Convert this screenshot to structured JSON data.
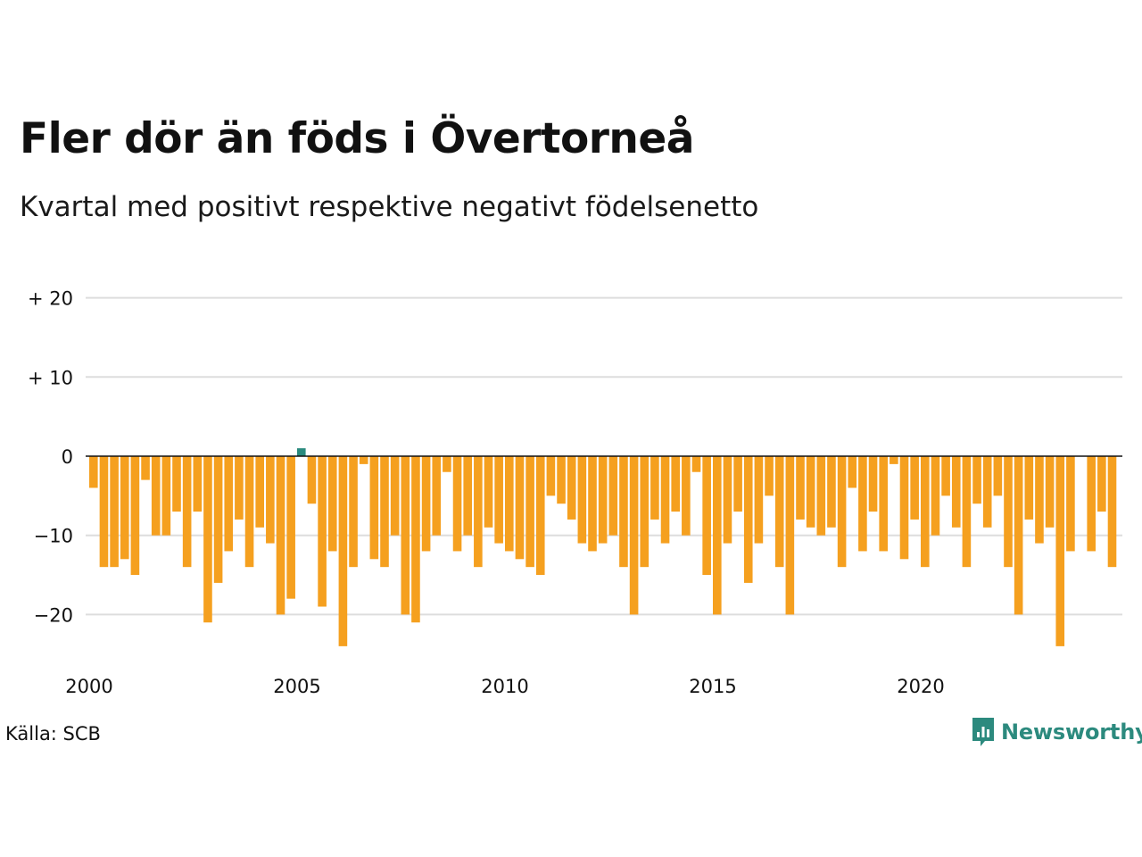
{
  "title": "Fler dör än föds i Övertorneå",
  "subtitle": "Kvartal med positivt respektive negativt födelsenetto",
  "source": "Källa: SCB",
  "brand": "Newsworthy",
  "colors": {
    "negative": "#f5a01f",
    "positive": "#2a8a7e",
    "grid": "#dddddd",
    "zero_line": "#111111",
    "brand": "#2c8a7e"
  },
  "chart_data": {
    "type": "bar",
    "title": "Fler dör än föds i Övertorneå",
    "subtitle": "Kvartal med positivt respektive negativt födelsenetto",
    "xlabel": "",
    "ylabel": "",
    "ylim": [
      -26,
      20
    ],
    "y_ticks": [
      {
        "value": 20,
        "label": "+ 20"
      },
      {
        "value": 10,
        "label": "+ 10"
      },
      {
        "value": 0,
        "label": "0"
      },
      {
        "value": -10,
        "label": "−10"
      },
      {
        "value": -20,
        "label": "−20"
      }
    ],
    "x_ticks": [
      {
        "value": 2000,
        "label": "2000"
      },
      {
        "value": 2005,
        "label": "2005"
      },
      {
        "value": 2010,
        "label": "2010"
      },
      {
        "value": 2015,
        "label": "2015"
      },
      {
        "value": 2020,
        "label": "2020"
      }
    ],
    "x_start": 2000,
    "grid": true,
    "legend": "none",
    "series": [
      {
        "values": [
          -4,
          -14,
          -14,
          -13,
          -15,
          -3,
          -10,
          -10,
          -7,
          -14,
          -7,
          -21,
          -16,
          -12,
          -8,
          -14,
          -9,
          -11,
          -20,
          -18,
          1,
          -6,
          -19,
          -12,
          -24,
          -14,
          -1,
          -13,
          -14,
          -10,
          -20,
          -21,
          -12,
          -10,
          -2,
          -12,
          -10,
          -14,
          -9,
          -11,
          -12,
          -13,
          -14,
          -15,
          -5,
          -6,
          -8,
          -11,
          -12,
          -11,
          -10,
          -14,
          -20,
          -14,
          -8,
          -11,
          -7,
          -10,
          -2,
          -15,
          -20,
          -11,
          -7,
          -16,
          -11,
          -5,
          -14,
          -20,
          -8,
          -9,
          -10,
          -9,
          -14,
          -4,
          -12,
          -7,
          -12,
          -1,
          -13,
          -8,
          -14,
          -10,
          -5,
          -9,
          -14,
          -6,
          -9,
          -5,
          -14,
          -20,
          -8,
          -11,
          -9,
          -24,
          -12,
          0,
          -12,
          -7,
          -14
        ]
      }
    ]
  }
}
